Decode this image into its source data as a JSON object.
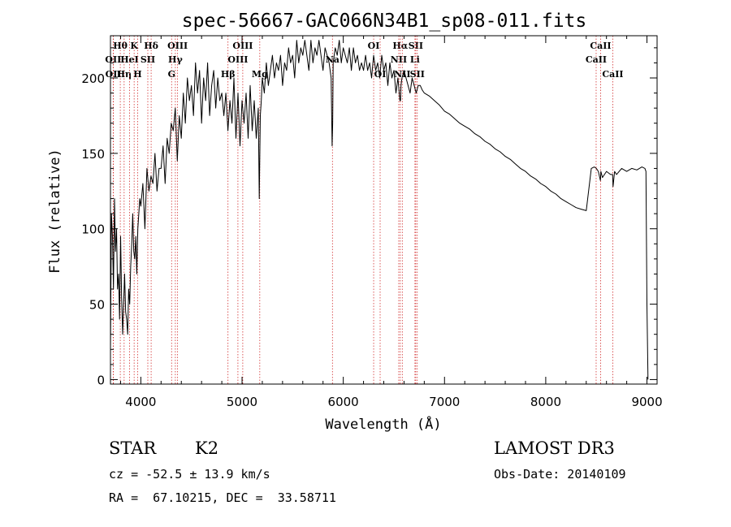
{
  "chart_data": {
    "type": "line",
    "title": "spec-56667-GAC066N34B1_sp08-011.fits",
    "xlabel": "Wavelength (Å)",
    "ylabel": "Flux (relative)",
    "xlim": [
      3700,
      9100
    ],
    "ylim": [
      -3,
      228
    ],
    "xticks": [
      4000,
      5000,
      6000,
      7000,
      8000,
      9000
    ],
    "yticks": [
      0,
      50,
      100,
      150,
      200
    ],
    "grid": false,
    "series": [
      {
        "name": "flux",
        "x": [
          3700,
          3710,
          3720,
          3730,
          3740,
          3750,
          3760,
          3770,
          3780,
          3790,
          3800,
          3810,
          3820,
          3830,
          3840,
          3850,
          3860,
          3870,
          3880,
          3890,
          3900,
          3910,
          3920,
          3930,
          3940,
          3950,
          3960,
          3970,
          3980,
          3990,
          4000,
          4020,
          4040,
          4060,
          4080,
          4100,
          4120,
          4140,
          4160,
          4180,
          4200,
          4220,
          4240,
          4260,
          4280,
          4300,
          4320,
          4340,
          4360,
          4380,
          4400,
          4420,
          4440,
          4460,
          4480,
          4500,
          4520,
          4540,
          4560,
          4580,
          4600,
          4620,
          4640,
          4660,
          4680,
          4700,
          4720,
          4740,
          4760,
          4780,
          4800,
          4820,
          4840,
          4860,
          4880,
          4900,
          4920,
          4940,
          4960,
          4980,
          5000,
          5020,
          5040,
          5060,
          5080,
          5100,
          5120,
          5140,
          5160,
          5170,
          5180,
          5190,
          5200,
          5220,
          5240,
          5260,
          5280,
          5300,
          5320,
          5340,
          5360,
          5380,
          5400,
          5420,
          5440,
          5460,
          5480,
          5500,
          5520,
          5540,
          5560,
          5580,
          5600,
          5620,
          5640,
          5660,
          5680,
          5700,
          5720,
          5740,
          5760,
          5780,
          5800,
          5820,
          5840,
          5860,
          5880,
          5890,
          5895,
          5900,
          5920,
          5940,
          5960,
          5980,
          6000,
          6020,
          6040,
          6060,
          6080,
          6100,
          6120,
          6140,
          6160,
          6180,
          6200,
          6220,
          6240,
          6260,
          6280,
          6300,
          6320,
          6340,
          6360,
          6380,
          6400,
          6420,
          6440,
          6460,
          6480,
          6500,
          6520,
          6540,
          6560,
          6565,
          6570,
          6580,
          6600,
          6620,
          6640,
          6660,
          6680,
          6700,
          6720,
          6740,
          6760,
          6780,
          6800,
          6850,
          6900,
          6950,
          7000,
          7050,
          7100,
          7150,
          7200,
          7250,
          7300,
          7350,
          7400,
          7450,
          7500,
          7550,
          7600,
          7650,
          7700,
          7750,
          7800,
          7850,
          7900,
          7950,
          8000,
          8050,
          8100,
          8150,
          8200,
          8250,
          8300,
          8350,
          8400,
          8450,
          8480,
          8500,
          8520,
          8540,
          8545,
          8560,
          8600,
          8640,
          8660,
          8665,
          8680,
          8700,
          8750,
          8800,
          8850,
          8900,
          8950,
          8980,
          8990,
          9000,
          9010
        ],
        "y": [
          20,
          110,
          95,
          60,
          120,
          85,
          100,
          60,
          70,
          40,
          95,
          55,
          30,
          50,
          70,
          45,
          40,
          30,
          60,
          50,
          75,
          90,
          110,
          85,
          80,
          95,
          70,
          100,
          110,
          120,
          115,
          130,
          100,
          140,
          125,
          135,
          130,
          150,
          125,
          140,
          140,
          155,
          130,
          160,
          150,
          170,
          165,
          180,
          145,
          175,
          160,
          190,
          170,
          200,
          185,
          195,
          175,
          210,
          190,
          205,
          170,
          200,
          185,
          210,
          175,
          195,
          205,
          180,
          200,
          185,
          190,
          175,
          190,
          165,
          185,
          170,
          200,
          160,
          190,
          155,
          185,
          170,
          190,
          160,
          195,
          165,
          185,
          160,
          180,
          120,
          175,
          185,
          200,
          190,
          210,
          195,
          205,
          215,
          200,
          210,
          205,
          215,
          195,
          210,
          205,
          220,
          210,
          215,
          200,
          225,
          210,
          220,
          215,
          225,
          215,
          205,
          225,
          210,
          220,
          215,
          225,
          215,
          205,
          220,
          215,
          210,
          200,
          155,
          170,
          210,
          220,
          215,
          225,
          210,
          220,
          215,
          210,
          220,
          205,
          220,
          210,
          215,
          205,
          210,
          205,
          215,
          205,
          210,
          200,
          215,
          205,
          210,
          200,
          215,
          205,
          210,
          195,
          210,
          200,
          205,
          190,
          200,
          185,
          185,
          195,
          200,
          205,
          200,
          195,
          190,
          200,
          195,
          190,
          195,
          195,
          192,
          190,
          188,
          185,
          182,
          178,
          176,
          173,
          170,
          168,
          166,
          163,
          161,
          158,
          156,
          153,
          151,
          148,
          146,
          143,
          140,
          138,
          135,
          133,
          130,
          128,
          125,
          123,
          120,
          118,
          116,
          114,
          113,
          112,
          140,
          141,
          140,
          138,
          132,
          138,
          134,
          138,
          136,
          136,
          128,
          138,
          136,
          140,
          138,
          140,
          139,
          141,
          140,
          138,
          50,
          0
        ]
      }
    ],
    "line_markers": [
      {
        "label": "Hθ",
        "x": 3797,
        "row": 0
      },
      {
        "label": "OII",
        "x": 3727,
        "row": 1
      },
      {
        "label": "OII",
        "x": 3729,
        "row": 2
      },
      {
        "label": "Hη",
        "x": 3835,
        "row": 2
      },
      {
        "label": "HeI",
        "x": 3889,
        "row": 1
      },
      {
        "label": "K",
        "x": 3934,
        "row": 0
      },
      {
        "label": "H",
        "x": 3968,
        "row": 2
      },
      {
        "label": "SII",
        "x": 4069,
        "row": 1
      },
      {
        "label": "Hδ",
        "x": 4102,
        "row": 0
      },
      {
        "label": "OIII",
        "x": 4363,
        "row": 0
      },
      {
        "label": "Hγ",
        "x": 4341,
        "row": 1
      },
      {
        "label": "G",
        "x": 4304,
        "row": 2
      },
      {
        "label": "OIII",
        "x": 5007,
        "row": 0
      },
      {
        "label": "OIII",
        "x": 4959,
        "row": 1
      },
      {
        "label": "Hβ",
        "x": 4861,
        "row": 2
      },
      {
        "label": "Mg",
        "x": 5175,
        "row": 2
      },
      {
        "label": "Na",
        "x": 5893,
        "row": 1
      },
      {
        "label": "OI",
        "x": 6300,
        "row": 0
      },
      {
        "label": "OI",
        "x": 6364,
        "row": 2
      },
      {
        "label": "Hα",
        "x": 6563,
        "row": 0
      },
      {
        "label": "NII",
        "x": 6548,
        "row": 1
      },
      {
        "label": "NII",
        "x": 6583,
        "row": 2
      },
      {
        "label": "SII",
        "x": 6716,
        "row": 0
      },
      {
        "label": "Li",
        "x": 6708,
        "row": 1
      },
      {
        "label": "SII",
        "x": 6731,
        "row": 2
      },
      {
        "label": "CaII",
        "x": 8542,
        "row": 0
      },
      {
        "label": "CaII",
        "x": 8498,
        "row": 1
      },
      {
        "label": "CaII",
        "x": 8662,
        "row": 2
      }
    ]
  },
  "info": {
    "object_class": "STAR",
    "subclass": "K2",
    "survey": "LAMOST DR3",
    "redshift": "cz = -52.5 ± 13.9 km/s",
    "obs_date": "Obs-Date: 20140109",
    "coords": "RA =  67.10215, DEC =  33.58711"
  }
}
